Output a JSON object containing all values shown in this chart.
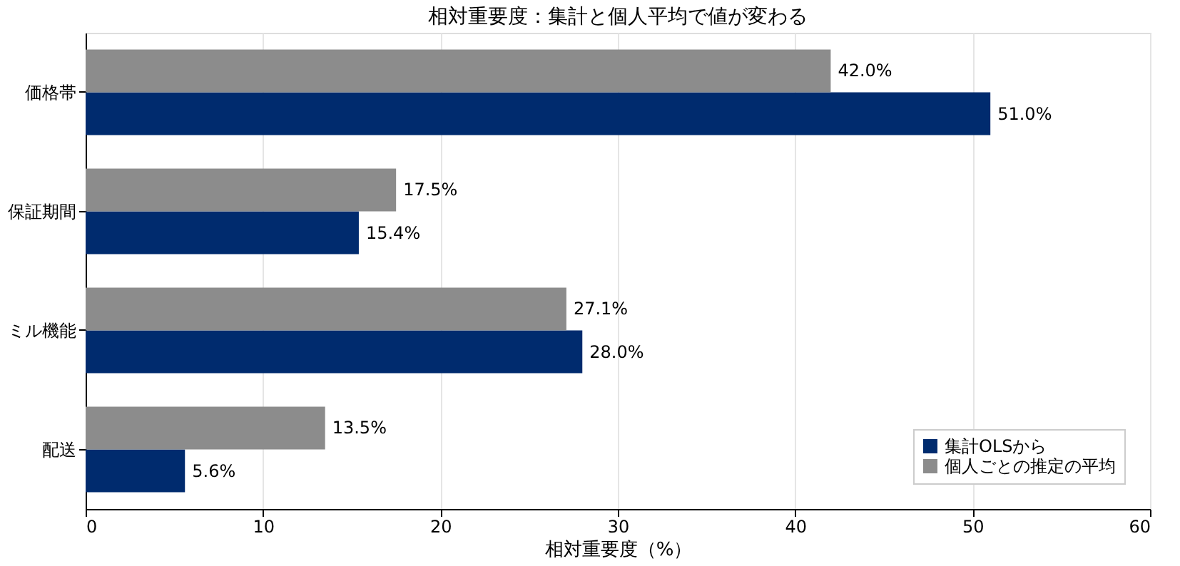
{
  "chart_data": {
    "type": "bar",
    "orientation": "horizontal",
    "title": "相対重要度：集計と個人平均で値が変わる",
    "xlabel": "相対重要度（%）",
    "categories": [
      "価格帯",
      "保証期間",
      "ミル機能",
      "配送"
    ],
    "series": [
      {
        "name": "集計OLSから",
        "color": "#002b6e",
        "values": [
          51.0,
          15.4,
          28.0,
          5.6
        ],
        "value_labels": [
          "51.0%",
          "15.4%",
          "28.0%",
          "5.6%"
        ]
      },
      {
        "name": "個人ごとの推定の平均",
        "color": "#8c8c8c",
        "values": [
          42.0,
          17.5,
          27.1,
          13.5
        ],
        "value_labels": [
          "42.0%",
          "17.5%",
          "27.1%",
          "13.5%"
        ]
      }
    ],
    "xlim": [
      0,
      60
    ],
    "xticks": [
      0,
      10,
      20,
      30,
      40,
      50,
      60
    ],
    "grid": "x",
    "legend": "bottom right"
  }
}
